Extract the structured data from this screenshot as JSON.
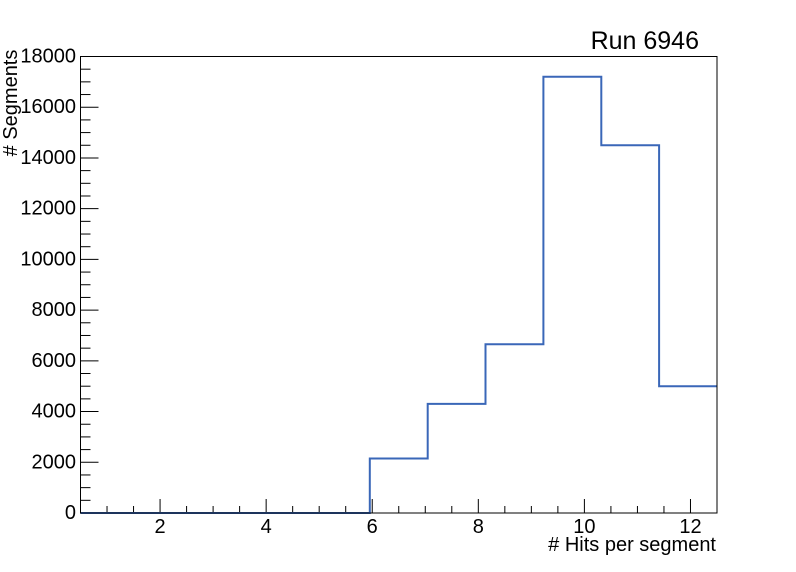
{
  "background_color": "#ffffff",
  "frame_color": "#000000",
  "chart_data": {
    "type": "line",
    "style": "step-histogram",
    "title": "Run 6946",
    "xlabel": "# Hits per segment",
    "ylabel": "# Segments",
    "xlim": [
      0.5,
      12.5
    ],
    "ylim": [
      0,
      18000
    ],
    "x_major_ticks": [
      2,
      4,
      6,
      8,
      10,
      12
    ],
    "x_minor_step": 0.5,
    "y_major_ticks": [
      0,
      2000,
      4000,
      6000,
      8000,
      10000,
      12000,
      14000,
      16000,
      18000
    ],
    "y_minor_step": 500,
    "grid": false,
    "legend": "none",
    "line_color": "#3a67b8",
    "bin_edges": [
      0.5,
      1.5909,
      2.6818,
      3.7727,
      4.8636,
      5.9545,
      7.0455,
      8.1364,
      9.2273,
      10.3182,
      11.4091,
      12.5
    ],
    "counts": [
      0,
      0,
      0,
      0,
      0,
      2150,
      4300,
      6650,
      17200,
      14500,
      5000
    ]
  }
}
